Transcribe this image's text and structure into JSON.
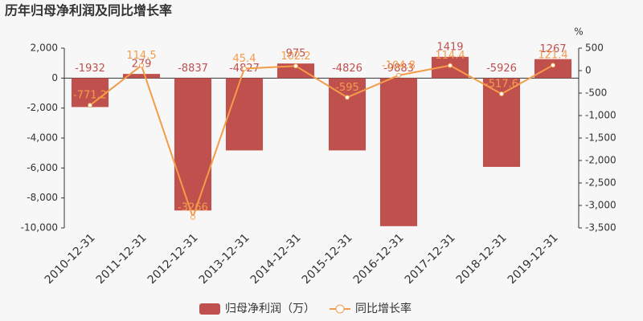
{
  "chart_data": {
    "type": "bar",
    "title": "历年归母净利润及同比增长率",
    "y2_unit": "%",
    "categories": [
      "2010-12-31",
      "2011-12-31",
      "2012-12-31",
      "2013-12-31",
      "2014-12-31",
      "2015-12-31",
      "2016-12-31",
      "2017-12-31",
      "2018-12-31",
      "2019-12-31"
    ],
    "series": [
      {
        "name": "归母净利润（万）",
        "type": "bar",
        "color": "#c0504d",
        "values": [
          -1932,
          279,
          -8837,
          -4827,
          975,
          -4826,
          -9883,
          1419,
          -5926,
          1267
        ]
      },
      {
        "name": "同比增长率",
        "type": "line",
        "axis": "y2",
        "color": "#f39c4a",
        "values": [
          -771.2,
          114.5,
          -3266,
          45.4,
          102.2,
          -595,
          -104.8,
          114.4,
          -517.6,
          121.4
        ]
      }
    ],
    "ylim": [
      -10000,
      2000
    ],
    "yticks": [
      {
        "value": 2000,
        "label": "2,000"
      },
      0,
      {
        "value": -2000,
        "label": "-2,000"
      },
      {
        "value": -4000,
        "label": "-4,000"
      },
      {
        "value": -6000,
        "label": "-6,000"
      },
      {
        "value": -8000,
        "label": "-8,000"
      },
      {
        "value": -10000,
        "label": "-10,000"
      }
    ],
    "y2lim": [
      -3500,
      500
    ],
    "y2ticks": [
      500,
      0,
      -500,
      {
        "value": -1000,
        "label": "-1,000"
      },
      {
        "value": -1500,
        "label": "-1,500"
      },
      {
        "value": -2000,
        "label": "-2,000"
      },
      {
        "value": -2500,
        "label": "-2,500"
      },
      {
        "value": -3000,
        "label": "-3,000"
      },
      {
        "value": -3500,
        "label": "-3,500"
      }
    ]
  }
}
